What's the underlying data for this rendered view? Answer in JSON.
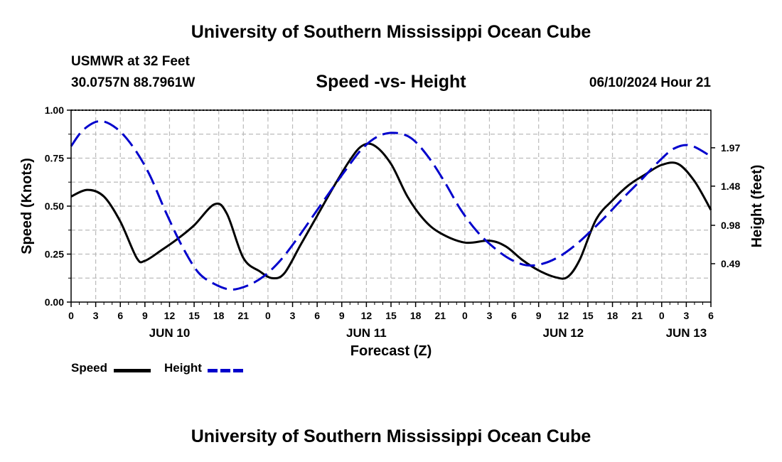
{
  "header": {
    "title_top": "University of Southern Mississippi Ocean Cube",
    "station": "USMWR at 32 Feet",
    "coords": "30.0757N  88.7961W",
    "chart_title": "Speed -vs- Height",
    "datetime": "06/10/2024 Hour 21",
    "title_bottom": "University of Southern Mississippi Ocean Cube"
  },
  "colors": {
    "speed": "#000000",
    "height": "#0000cc",
    "grid": "#bbbbbb"
  },
  "legend": {
    "speed_label": "Speed",
    "height_label": "Height"
  },
  "chart_data": {
    "type": "line",
    "title": "Speed -vs- Height",
    "xlabel": "Forecast (Z)",
    "ylabel": "Speed (Knots)",
    "y2label": "Height (feet)",
    "xlim": [
      0,
      78
    ],
    "ylim": [
      0,
      1
    ],
    "y2lim": [
      0,
      2.45
    ],
    "x_ticks": [
      0,
      3,
      6,
      9,
      12,
      15,
      18,
      21,
      24,
      27,
      30,
      33,
      36,
      39,
      42,
      45,
      48,
      51,
      54,
      57,
      60,
      63,
      66,
      69,
      72,
      75,
      78
    ],
    "x_tick_labels": [
      "0",
      "3",
      "6",
      "9",
      "12",
      "15",
      "18",
      "21",
      "0",
      "3",
      "6",
      "9",
      "12",
      "15",
      "18",
      "21",
      "0",
      "3",
      "6",
      "9",
      "12",
      "15",
      "18",
      "21",
      "0",
      "3",
      "6"
    ],
    "day_labels": [
      {
        "x": 12,
        "label": "JUN 10"
      },
      {
        "x": 36,
        "label": "JUN 11"
      },
      {
        "x": 60,
        "label": "JUN 12"
      },
      {
        "x": 75,
        "label": "JUN 13"
      }
    ],
    "y_ticks": [
      0,
      0.25,
      0.5,
      0.75,
      1.0
    ],
    "y_tick_labels": [
      "0.00",
      "0.25",
      "0.50",
      "0.75",
      "1.00"
    ],
    "y2_ticks": [
      0.49,
      0.98,
      1.48,
      1.97
    ],
    "y2_tick_labels": [
      "0.49",
      "0.98",
      "1.48",
      "1.97"
    ],
    "series": [
      {
        "name": "Speed",
        "axis": "left",
        "style": "solid",
        "x": [
          0,
          2,
          4,
          6,
          8,
          9,
          11,
          13,
          15,
          17.5,
          19,
          21,
          23,
          24.5,
          26,
          28,
          30,
          32,
          34,
          35.5,
          37,
          39,
          41,
          43,
          45,
          48,
          51,
          53,
          55,
          57,
          59,
          60.5,
          62,
          64,
          66,
          68,
          70,
          72,
          74,
          76,
          78
        ],
        "values": [
          0.55,
          0.585,
          0.55,
          0.42,
          0.23,
          0.215,
          0.27,
          0.33,
          0.4,
          0.51,
          0.46,
          0.23,
          0.16,
          0.125,
          0.15,
          0.3,
          0.45,
          0.6,
          0.74,
          0.815,
          0.815,
          0.72,
          0.55,
          0.43,
          0.36,
          0.31,
          0.32,
          0.29,
          0.22,
          0.165,
          0.13,
          0.13,
          0.22,
          0.43,
          0.53,
          0.61,
          0.665,
          0.715,
          0.72,
          0.63,
          0.48
        ]
      },
      {
        "name": "Height",
        "axis": "right",
        "style": "dashed",
        "x": [
          0,
          1.5,
          3.5,
          5.5,
          7.5,
          9.5,
          11.5,
          13.5,
          15.5,
          17.5,
          19.5,
          21.5,
          23.5,
          25.5,
          27.5,
          29.5,
          31.5,
          33.5,
          35.5,
          37.5,
          39.5,
          41.5,
          43.5,
          45.5,
          47.5,
          49.5,
          51.5,
          53.5,
          55.5,
          57.5,
          59.5,
          61.5,
          63.5,
          65.5,
          67.5,
          69.5,
          71.5,
          73.5,
          75.5,
          78
        ],
        "values": [
          1.99,
          2.2,
          2.31,
          2.22,
          1.99,
          1.64,
          1.16,
          0.72,
          0.38,
          0.23,
          0.16,
          0.21,
          0.33,
          0.53,
          0.8,
          1.1,
          1.4,
          1.69,
          1.96,
          2.12,
          2.16,
          2.09,
          1.86,
          1.54,
          1.18,
          0.9,
          0.7,
          0.55,
          0.47,
          0.49,
          0.58,
          0.73,
          0.92,
          1.13,
          1.35,
          1.56,
          1.78,
          1.96,
          2.0,
          1.86
        ]
      }
    ]
  }
}
